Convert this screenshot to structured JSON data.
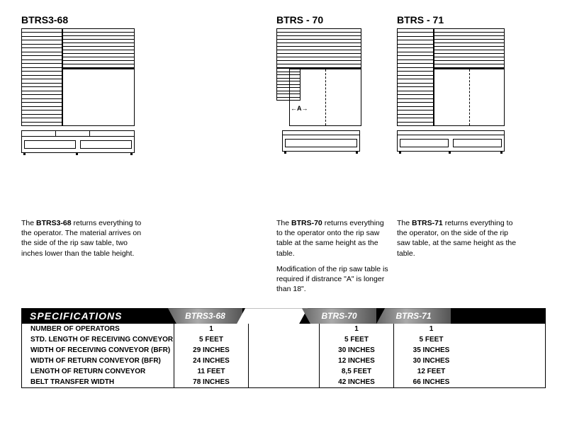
{
  "models": [
    {
      "title": "BTRS3-68"
    },
    {
      "title": "BTRS - 70"
    },
    {
      "title": "BTRS - 71"
    }
  ],
  "desc1": {
    "bold": "BTRS3-68",
    "text": " returns everything to the operator. The material arrives on the side of the rip saw table, two inches lower than the table height."
  },
  "desc2a": {
    "bold": "BTRS-70",
    "text": " returns everything to the operator onto the rip saw table at the same height as the table."
  },
  "desc2b": "Modification of the rip saw table is required if distrance \"A\" is longer than 18\".",
  "desc3": {
    "bold": "BTRS-71",
    "text": " returns everything to the operator, on the side of the rip saw table, at the same height as the table."
  },
  "a_label": "A",
  "spec": {
    "title": "SPECIFICATIONS",
    "cols": [
      "BTRS3-68",
      "BTRS-70",
      "BTRS-71"
    ],
    "rows": [
      {
        "label": "NUMBER OF OPERATORS",
        "v": [
          "1",
          "1",
          "1"
        ]
      },
      {
        "label": "STD. LENGTH OF RECEIVING CONVEYOR",
        "v": [
          "5 FEET",
          "5 FEET",
          "5 FEET"
        ]
      },
      {
        "label": "WIDTH OF RECEIVING CONVEYOR (BFR)",
        "v": [
          "29 INCHES",
          "30 INCHES",
          "35 INCHES"
        ]
      },
      {
        "label": "WIDTH OF RETURN CONVEYOR (BFR)",
        "v": [
          "24 INCHES",
          "12 INCHES",
          "30 INCHES"
        ]
      },
      {
        "label": "LENGTH OF RETURN CONVEYOR",
        "v": [
          "11 FEET",
          "8,5 FEET",
          "12 FEET"
        ]
      },
      {
        "label": "BELT TRANSFER WIDTH",
        "v": [
          "78 INCHES",
          "42 INCHES",
          "66 INCHES"
        ]
      }
    ]
  },
  "colors": {
    "black": "#000000",
    "white": "#ffffff",
    "tab_grad": "#888888"
  }
}
